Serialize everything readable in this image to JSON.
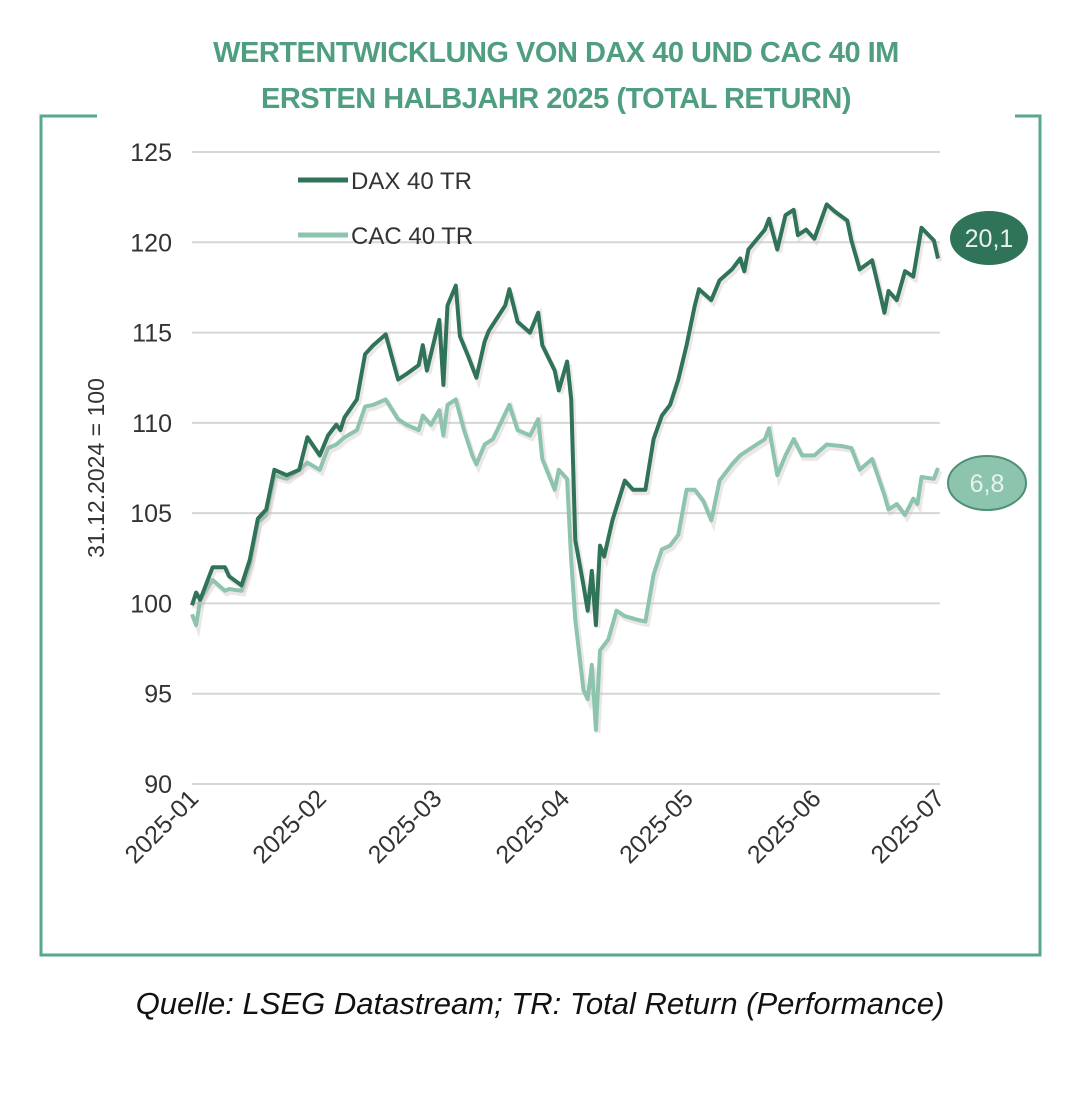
{
  "chart_data": {
    "type": "line",
    "title": "WERTENTWICKLUNG VON DAX 40 UND CAC 40 IM ERSTEN HALBJAHR 2025 (TOTAL RETURN)",
    "title_lines": [
      "WERTENTWICKLUNG VON DAX 40 UND CAC 40 IM",
      "ERSTEN HALBJAHR 2025 (TOTAL RETURN)"
    ],
    "ylabel": "31.12.2024 = 100",
    "xlabel": "",
    "ylim": [
      90,
      125
    ],
    "yticks": [
      90,
      95,
      100,
      105,
      110,
      115,
      120,
      125
    ],
    "xlim": [
      "2025-01-01",
      "2025-07-01"
    ],
    "xticks": [
      "2025-01",
      "2025-02",
      "2025-03",
      "2025-04",
      "2025-05",
      "2025-06",
      "2025-07"
    ],
    "grid": "horizontal",
    "legend_position": "top-left",
    "source": "Quelle: LSEG Datastream; TR: Total Return (Performance)",
    "series": [
      {
        "name": "DAX 40 TR",
        "color": "#2f7358",
        "end_label": "20,1",
        "points": [
          [
            "2025-01-01",
            99.9
          ],
          [
            "2025-01-02",
            100.6
          ],
          [
            "2025-01-03",
            100.2
          ],
          [
            "2025-01-06",
            102.0
          ],
          [
            "2025-01-09",
            102.0
          ],
          [
            "2025-01-10",
            101.5
          ],
          [
            "2025-01-13",
            101.0
          ],
          [
            "2025-01-15",
            102.4
          ],
          [
            "2025-01-17",
            104.7
          ],
          [
            "2025-01-19",
            105.2
          ],
          [
            "2025-01-21",
            107.4
          ],
          [
            "2025-01-24",
            107.1
          ],
          [
            "2025-01-27",
            107.4
          ],
          [
            "2025-01-29",
            109.2
          ],
          [
            "2025-02-01",
            108.2
          ],
          [
            "2025-02-03",
            109.3
          ],
          [
            "2025-02-05",
            109.9
          ],
          [
            "2025-02-06",
            109.6
          ],
          [
            "2025-02-07",
            110.3
          ],
          [
            "2025-02-10",
            111.3
          ],
          [
            "2025-02-12",
            113.8
          ],
          [
            "2025-02-14",
            114.3
          ],
          [
            "2025-02-17",
            114.9
          ],
          [
            "2025-02-20",
            112.4
          ],
          [
            "2025-02-22",
            112.7
          ],
          [
            "2025-02-25",
            113.2
          ],
          [
            "2025-02-26",
            114.3
          ],
          [
            "2025-02-27",
            112.9
          ],
          [
            "2025-03-02",
            115.7
          ],
          [
            "2025-03-03",
            112.1
          ],
          [
            "2025-03-04",
            116.5
          ],
          [
            "2025-03-06",
            117.6
          ],
          [
            "2025-03-07",
            114.8
          ],
          [
            "2025-03-09",
            113.7
          ],
          [
            "2025-03-11",
            112.5
          ],
          [
            "2025-03-13",
            114.5
          ],
          [
            "2025-03-14",
            115.1
          ],
          [
            "2025-03-18",
            116.5
          ],
          [
            "2025-03-19",
            117.4
          ],
          [
            "2025-03-21",
            115.6
          ],
          [
            "2025-03-24",
            115.0
          ],
          [
            "2025-03-26",
            116.1
          ],
          [
            "2025-03-27",
            114.3
          ],
          [
            "2025-03-30",
            112.9
          ],
          [
            "2025-03-31",
            111.8
          ],
          [
            "2025-04-02",
            113.4
          ],
          [
            "2025-04-03",
            111.3
          ],
          [
            "2025-04-04",
            103.5
          ],
          [
            "2025-04-06",
            101.0
          ],
          [
            "2025-04-07",
            99.6
          ],
          [
            "2025-04-08",
            101.8
          ],
          [
            "2025-04-09",
            98.8
          ],
          [
            "2025-04-10",
            103.2
          ],
          [
            "2025-04-11",
            102.6
          ],
          [
            "2025-04-13",
            104.6
          ],
          [
            "2025-04-16",
            106.8
          ],
          [
            "2025-04-18",
            106.3
          ],
          [
            "2025-04-21",
            106.3
          ],
          [
            "2025-04-23",
            109.1
          ],
          [
            "2025-04-25",
            110.4
          ],
          [
            "2025-04-27",
            111.0
          ],
          [
            "2025-04-29",
            112.4
          ],
          [
            "2025-05-01",
            114.3
          ],
          [
            "2025-05-03",
            116.5
          ],
          [
            "2025-05-04",
            117.4
          ],
          [
            "2025-05-07",
            116.8
          ],
          [
            "2025-05-09",
            117.9
          ],
          [
            "2025-05-12",
            118.5
          ],
          [
            "2025-05-14",
            119.1
          ],
          [
            "2025-05-15",
            118.4
          ],
          [
            "2025-05-16",
            119.6
          ],
          [
            "2025-05-20",
            120.7
          ],
          [
            "2025-05-21",
            121.3
          ],
          [
            "2025-05-23",
            119.6
          ],
          [
            "2025-05-25",
            121.5
          ],
          [
            "2025-05-27",
            121.8
          ],
          [
            "2025-05-28",
            120.4
          ],
          [
            "2025-05-30",
            120.7
          ],
          [
            "2025-06-01",
            120.2
          ],
          [
            "2025-06-04",
            122.1
          ],
          [
            "2025-06-06",
            121.7
          ],
          [
            "2025-06-09",
            121.2
          ],
          [
            "2025-06-10",
            120.1
          ],
          [
            "2025-06-12",
            118.5
          ],
          [
            "2025-06-15",
            119.0
          ],
          [
            "2025-06-17",
            117.1
          ],
          [
            "2025-06-18",
            116.1
          ],
          [
            "2025-06-19",
            117.3
          ],
          [
            "2025-06-21",
            116.8
          ],
          [
            "2025-06-23",
            118.4
          ],
          [
            "2025-06-25",
            118.1
          ],
          [
            "2025-06-27",
            120.8
          ],
          [
            "2025-06-30",
            120.1
          ],
          [
            "2025-07-01",
            119.1
          ]
        ]
      },
      {
        "name": "CAC 40 TR",
        "color": "#8cc4ad",
        "end_label": "6,8",
        "points": [
          [
            "2025-01-01",
            99.4
          ],
          [
            "2025-01-02",
            98.8
          ],
          [
            "2025-01-03",
            100.2
          ],
          [
            "2025-01-06",
            101.3
          ],
          [
            "2025-01-09",
            100.7
          ],
          [
            "2025-01-10",
            100.8
          ],
          [
            "2025-01-13",
            100.7
          ],
          [
            "2025-01-15",
            102.1
          ],
          [
            "2025-01-17",
            104.5
          ],
          [
            "2025-01-19",
            104.9
          ],
          [
            "2025-01-21",
            107.1
          ],
          [
            "2025-01-24",
            106.9
          ],
          [
            "2025-01-27",
            107.4
          ],
          [
            "2025-01-29",
            107.8
          ],
          [
            "2025-02-01",
            107.4
          ],
          [
            "2025-02-03",
            108.6
          ],
          [
            "2025-02-05",
            108.8
          ],
          [
            "2025-02-07",
            109.2
          ],
          [
            "2025-02-10",
            109.6
          ],
          [
            "2025-02-12",
            110.9
          ],
          [
            "2025-02-14",
            111.0
          ],
          [
            "2025-02-17",
            111.3
          ],
          [
            "2025-02-20",
            110.2
          ],
          [
            "2025-02-22",
            109.9
          ],
          [
            "2025-02-25",
            109.6
          ],
          [
            "2025-02-26",
            110.4
          ],
          [
            "2025-02-28",
            109.9
          ],
          [
            "2025-03-02",
            110.7
          ],
          [
            "2025-03-03",
            109.3
          ],
          [
            "2025-03-04",
            111.0
          ],
          [
            "2025-03-06",
            111.3
          ],
          [
            "2025-03-08",
            109.6
          ],
          [
            "2025-03-10",
            108.2
          ],
          [
            "2025-03-11",
            107.7
          ],
          [
            "2025-03-13",
            108.8
          ],
          [
            "2025-03-15",
            109.1
          ],
          [
            "2025-03-19",
            111.0
          ],
          [
            "2025-03-21",
            109.6
          ],
          [
            "2025-03-24",
            109.3
          ],
          [
            "2025-03-26",
            110.2
          ],
          [
            "2025-03-27",
            108.0
          ],
          [
            "2025-03-30",
            106.3
          ],
          [
            "2025-03-31",
            107.4
          ],
          [
            "2025-04-02",
            106.9
          ],
          [
            "2025-04-03",
            102.4
          ],
          [
            "2025-04-04",
            99.1
          ],
          [
            "2025-04-06",
            95.2
          ],
          [
            "2025-04-07",
            94.7
          ],
          [
            "2025-04-08",
            96.6
          ],
          [
            "2025-04-09",
            93.0
          ],
          [
            "2025-04-10",
            97.4
          ],
          [
            "2025-04-12",
            98.0
          ],
          [
            "2025-04-14",
            99.6
          ],
          [
            "2025-04-16",
            99.3
          ],
          [
            "2025-04-19",
            99.1
          ],
          [
            "2025-04-21",
            99.0
          ],
          [
            "2025-04-23",
            101.6
          ],
          [
            "2025-04-25",
            103.0
          ],
          [
            "2025-04-27",
            103.2
          ],
          [
            "2025-04-29",
            103.8
          ],
          [
            "2025-05-01",
            106.3
          ],
          [
            "2025-05-03",
            106.3
          ],
          [
            "2025-05-05",
            105.7
          ],
          [
            "2025-05-07",
            104.6
          ],
          [
            "2025-05-09",
            106.8
          ],
          [
            "2025-05-12",
            107.7
          ],
          [
            "2025-05-14",
            108.2
          ],
          [
            "2025-05-16",
            108.5
          ],
          [
            "2025-05-20",
            109.1
          ],
          [
            "2025-05-21",
            109.7
          ],
          [
            "2025-05-23",
            107.1
          ],
          [
            "2025-05-25",
            108.2
          ],
          [
            "2025-05-27",
            109.1
          ],
          [
            "2025-05-29",
            108.2
          ],
          [
            "2025-06-01",
            108.2
          ],
          [
            "2025-06-04",
            108.8
          ],
          [
            "2025-06-08",
            108.7
          ],
          [
            "2025-06-10",
            108.6
          ],
          [
            "2025-06-12",
            107.4
          ],
          [
            "2025-06-15",
            108.0
          ],
          [
            "2025-06-18",
            106.0
          ],
          [
            "2025-06-19",
            105.2
          ],
          [
            "2025-06-21",
            105.5
          ],
          [
            "2025-06-23",
            104.9
          ],
          [
            "2025-06-25",
            105.8
          ],
          [
            "2025-06-26",
            105.5
          ],
          [
            "2025-06-27",
            107.0
          ],
          [
            "2025-06-30",
            106.9
          ],
          [
            "2025-07-01",
            107.5
          ]
        ]
      }
    ]
  },
  "colors": {
    "frame": "#5aa88a",
    "title": "#4f9e80",
    "grid": "#d6d6d6"
  }
}
